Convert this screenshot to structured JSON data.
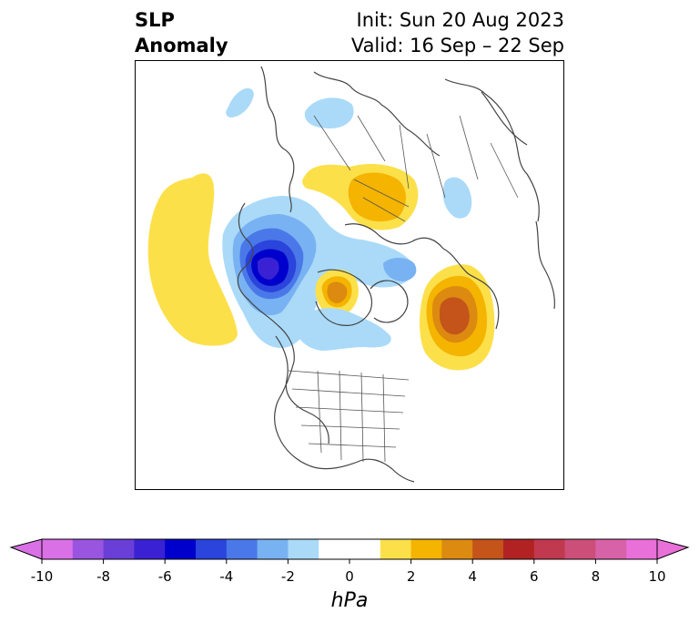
{
  "header": {
    "title_line1": "SLP",
    "title_line2": "Anomaly",
    "init_text": "Init: Sun 20 Aug 2023",
    "valid_text": "Valid: 16 Sep – 22 Sep"
  },
  "colorbar": {
    "unit": "hPa",
    "ticks": [
      "-10",
      "-8",
      "-6",
      "-4",
      "-2",
      "0",
      "2",
      "4",
      "6",
      "8",
      "10"
    ],
    "colors": [
      "#da70e6",
      "#9a55e0",
      "#6a3fd8",
      "#3a22d4",
      "#0000cc",
      "#2a44dc",
      "#4a78e8",
      "#78b2f2",
      "#aadaf8",
      "#ffffff",
      "#ffffff",
      "#fce04a",
      "#f4b400",
      "#dc8a10",
      "#c4541a",
      "#b22222",
      "#c0394f",
      "#cc4f7a",
      "#d862a8",
      "#e870d8"
    ],
    "under_color": "#da70e6",
    "over_color": "#e870d8"
  },
  "map": {
    "anomaly_colors": {
      "light_blue": "#aadaf8",
      "mid_blue": "#78b2f2",
      "blue": "#4a78e8",
      "deep_blue": "#2a44dc",
      "darkest_blue": "#0000cc",
      "purple_core": "#3a22d4",
      "yellow": "#fce04a",
      "gold": "#f4b400",
      "orange": "#dc8a10",
      "dark_orange": "#c4541a"
    },
    "border_color": "#444444"
  }
}
